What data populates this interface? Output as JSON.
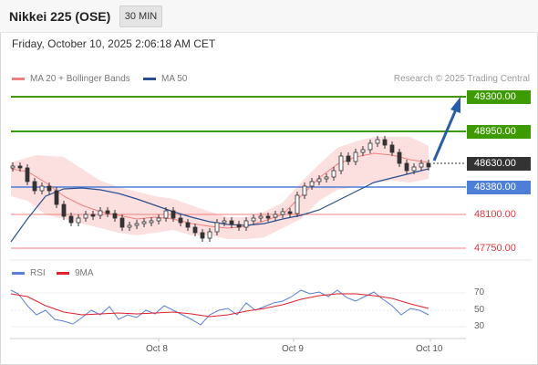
{
  "header": {
    "title": "Nikkei 225 (OSE)",
    "timeframe": "30 MIN"
  },
  "datetime": "Friday, October 10, 2025 2:06:18 AM CET",
  "legend": {
    "bollinger": {
      "label": "MA 20 + Bollinger Bands",
      "color": "#f08080"
    },
    "ma50": {
      "label": "MA 50",
      "color": "#2a4f8f"
    }
  },
  "copyright": "Research © 2025 Trading Central",
  "levels": [
    {
      "label": "49300.00",
      "style": "green",
      "value": 49300
    },
    {
      "label": "48950.00",
      "style": "green",
      "value": 48950
    },
    {
      "label": "48630.00",
      "style": "dark",
      "value": 48630
    },
    {
      "label": "48380.00",
      "style": "blue",
      "value": 48380
    },
    {
      "label": "48100.00",
      "style": "plain",
      "value": 48100
    },
    {
      "label": "47750.00",
      "style": "plain",
      "value": 47750
    }
  ],
  "rsi": {
    "legend_rsi": "RSI",
    "legend_ma": "9MA",
    "rsi_color": "#5b7fd8",
    "ma_color": "#e0202a",
    "ticks": [
      "70",
      "50",
      "30"
    ]
  },
  "x_axis": [
    "Oct 8",
    "Oct 9",
    "Oct 10"
  ],
  "colors": {
    "support": "#3d9a00",
    "pivot": "#4d7fd6",
    "resistance_red": "#f08080",
    "arrow": "#2a5ca8"
  }
}
